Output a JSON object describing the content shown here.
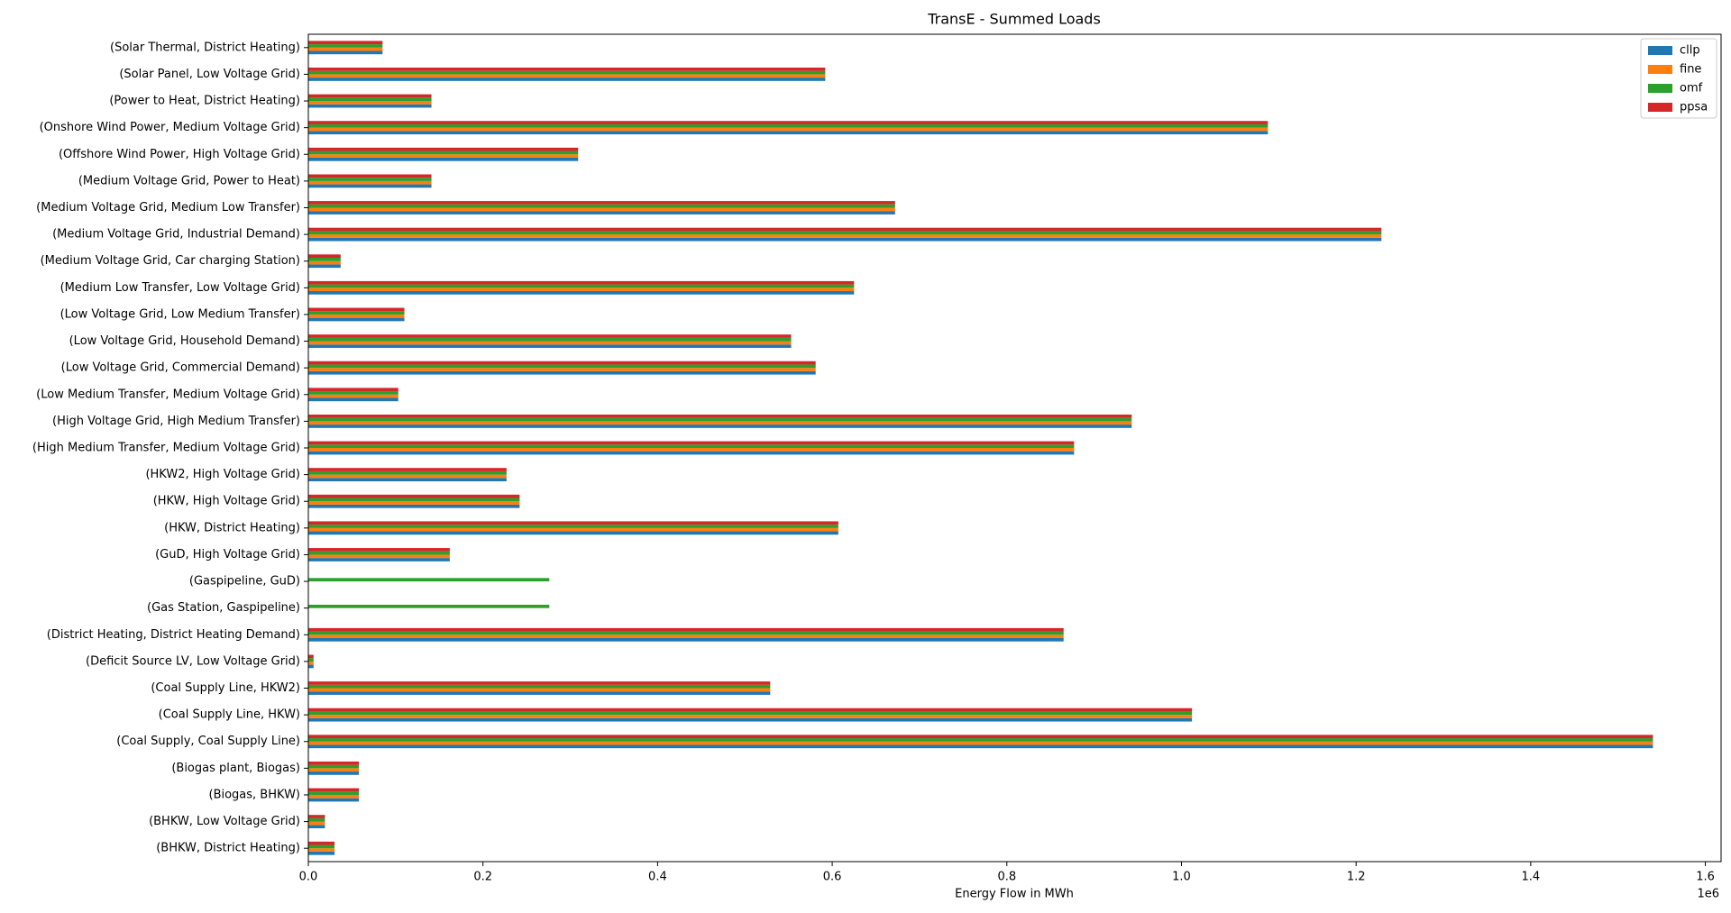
{
  "chart_data": {
    "type": "barh",
    "title": "TransE -  Summed Loads",
    "x_label": "Energy Flow in MWh",
    "x_offset_label": "1e6",
    "categories": [
      "(Solar Thermal, District Heating)",
      "(Solar Panel, Low Voltage Grid)",
      "(Power to Heat, District Heating)",
      "(Onshore Wind Power, Medium Voltage Grid)",
      "(Offshore Wind Power, High Voltage Grid)",
      "(Medium Voltage Grid, Power to Heat)",
      "(Medium Voltage Grid, Medium Low Transfer)",
      "(Medium Voltage Grid, Industrial Demand)",
      "(Medium Voltage Grid, Car charging Station)",
      "(Medium Low Transfer, Low Voltage Grid)",
      "(Low Voltage Grid, Low Medium Transfer)",
      "(Low Voltage Grid, Household Demand)",
      "(Low Voltage Grid, Commercial Demand)",
      "(Low Medium Transfer, Medium Voltage Grid)",
      "(High Voltage Grid, High Medium Transfer)",
      "(High Medium Transfer, Medium Voltage Grid)",
      "(HKW2, High Voltage Grid)",
      "(HKW, High Voltage Grid)",
      "(HKW, District Heating)",
      "(GuD, High Voltage Grid)",
      "(Gaspipeline, GuD)",
      "(Gas Station, Gaspipeline)",
      "(District Heating, District Heating Demand)",
      "(Deficit Source LV, Low Voltage Grid)",
      "(Coal Supply Line, HKW2)",
      "(Coal Supply Line, HKW)",
      "(Coal Supply, Coal Supply Line)",
      "(Biogas plant, Biogas)",
      "(Biogas, BHKW)",
      "(BHKW, Low Voltage Grid)",
      "(BHKW, District Heating)"
    ],
    "series": [
      {
        "name": "cllp",
        "color": "#1f77b4",
        "values": [
          0.085,
          0.592,
          0.141,
          1.099,
          0.309,
          0.141,
          0.672,
          1.229,
          0.037,
          0.625,
          0.11,
          0.553,
          0.581,
          0.103,
          0.943,
          0.877,
          0.227,
          0.242,
          0.607,
          0.162,
          null,
          null,
          0.865,
          0.006,
          0.529,
          1.012,
          1.54,
          0.058,
          0.058,
          0.019,
          0.03
        ]
      },
      {
        "name": "fine",
        "color": "#ff7f0e",
        "values": [
          0.085,
          0.592,
          0.141,
          1.099,
          0.309,
          0.141,
          0.672,
          1.229,
          0.037,
          0.625,
          0.11,
          0.553,
          0.581,
          0.103,
          0.943,
          0.877,
          0.227,
          0.242,
          0.607,
          0.162,
          null,
          null,
          0.865,
          0.006,
          0.529,
          1.012,
          1.54,
          0.058,
          0.058,
          0.019,
          0.03
        ]
      },
      {
        "name": "omf",
        "color": "#2ca02c",
        "values": [
          0.085,
          0.592,
          0.141,
          1.099,
          0.309,
          0.141,
          0.672,
          1.229,
          0.037,
          0.625,
          0.11,
          0.553,
          0.581,
          0.103,
          0.943,
          0.877,
          0.227,
          0.242,
          0.607,
          0.162,
          0.276,
          0.276,
          0.865,
          0.006,
          0.529,
          1.012,
          1.54,
          0.058,
          0.058,
          0.019,
          0.03
        ]
      },
      {
        "name": "ppsa",
        "color": "#d62728",
        "values": [
          0.085,
          0.592,
          0.141,
          1.099,
          0.309,
          0.141,
          0.672,
          1.229,
          0.037,
          0.625,
          0.11,
          0.553,
          0.581,
          0.103,
          0.943,
          0.877,
          0.227,
          0.242,
          0.607,
          0.162,
          null,
          null,
          0.865,
          0.006,
          0.529,
          1.012,
          1.54,
          0.058,
          0.058,
          0.019,
          0.03
        ]
      }
    ],
    "xlim": [
      0,
      1.618
    ],
    "xticks": [
      {
        "value": 0,
        "label": "0.0"
      },
      0.2,
      0.4,
      0.6,
      0.8,
      {
        "value": 1,
        "label": "1.0"
      },
      1.2,
      1.4,
      1.6
    ],
    "legend": "upper right"
  }
}
